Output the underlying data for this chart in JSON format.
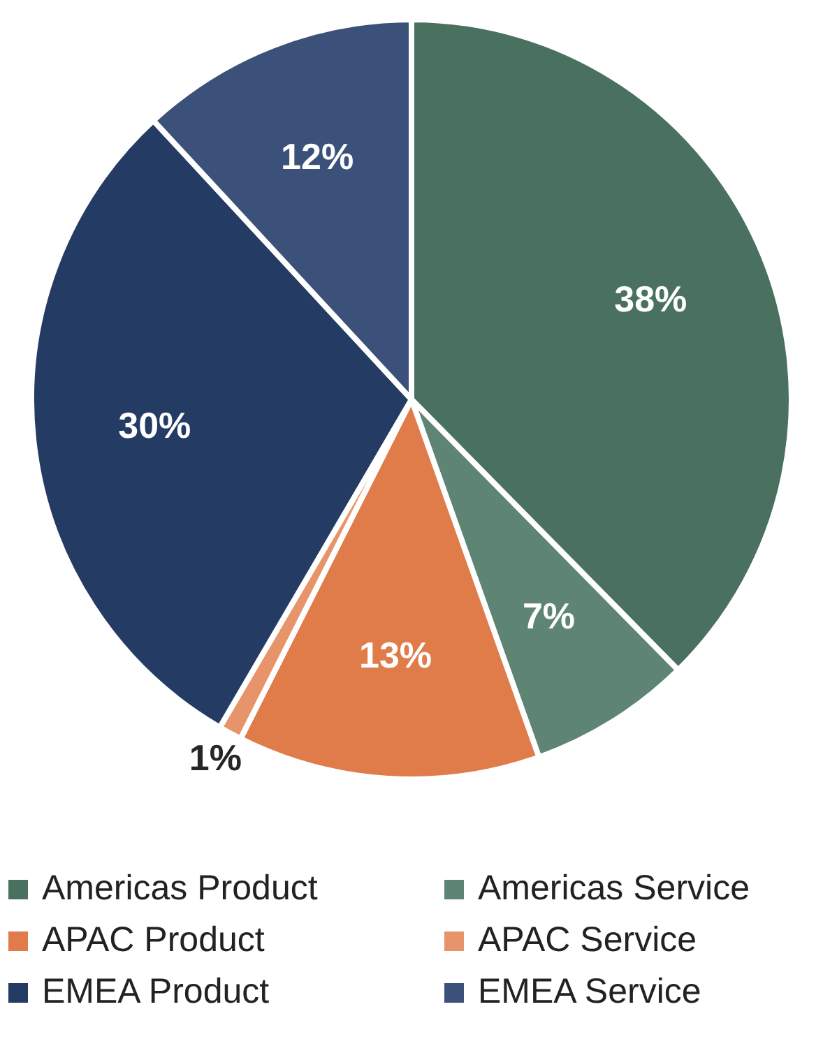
{
  "chart_data": {
    "type": "pie",
    "categories": [
      "Americas Product",
      "Americas Service",
      "APAC Product",
      "APAC Service",
      "EMEA Product",
      "EMEA Service"
    ],
    "values": [
      38,
      7,
      13,
      1,
      30,
      12
    ],
    "colors": [
      "#4a7060",
      "#5e8474",
      "#e07b4a",
      "#e8946a",
      "#243b63",
      "#3b5179"
    ],
    "value_labels": [
      "38%",
      "7%",
      "13%",
      "1%",
      "30%",
      "12%"
    ],
    "legend": "bottom"
  }
}
